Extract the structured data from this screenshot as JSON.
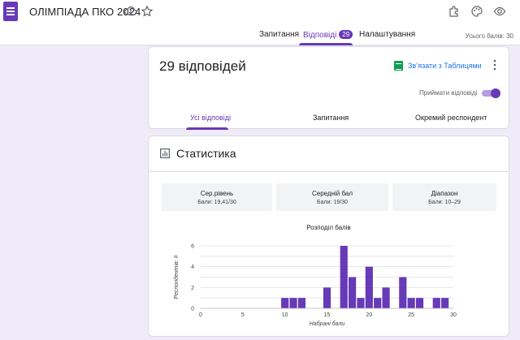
{
  "app": {
    "icon": "forms-icon",
    "title": "ОЛІМПІАДА ПКО 2024"
  },
  "toolbar": {
    "icons": [
      "move-to-drive-icon",
      "star-icon",
      "addon-icon",
      "palette-icon",
      "preview-eye-icon"
    ]
  },
  "tabs": [
    {
      "label": "Запитання"
    },
    {
      "label": "Відповіді",
      "badge": "29"
    },
    {
      "label": "Налаштування"
    }
  ],
  "total_points": "Усього балів: 30",
  "responses": {
    "title": "29 відповідей",
    "link_sheets": "Зв’язати з Таблицями",
    "accepting_label": "Приймати відповіді",
    "accepting": true,
    "subtabs": [
      "Усі відповіді",
      "Запитання",
      "Окремий респондент"
    ]
  },
  "stats": {
    "title": "Статистика",
    "summary": [
      {
        "label": "Сер.рівень",
        "value": "Бали: 19,41/30"
      },
      {
        "label": "Середній бал",
        "value": "Бали: 19/30"
      },
      {
        "label": "Діапазон",
        "value": "Бали: 10–29"
      }
    ]
  },
  "colors": {
    "accent": "#673ab7",
    "bar": "#673ab7",
    "sheets": "#0f9d58",
    "link": "#1a73e8"
  },
  "chart_data": {
    "type": "bar",
    "title": "Розподіл балів",
    "xlabel": "Набрані бали",
    "ylabel": "Респондентів: #",
    "x": [
      10,
      11,
      12,
      15,
      17,
      18,
      19,
      20,
      21,
      22,
      24,
      25,
      26,
      28,
      29
    ],
    "values": [
      1,
      1,
      1,
      2,
      6,
      3,
      1,
      4,
      1,
      2,
      3,
      1,
      1,
      1,
      1
    ],
    "xlim": [
      0,
      30
    ],
    "ylim": [
      0,
      6
    ],
    "xticks": [
      0,
      5,
      10,
      15,
      20,
      25,
      30
    ],
    "yticks": [
      0,
      2,
      4,
      6
    ],
    "grid": true
  }
}
